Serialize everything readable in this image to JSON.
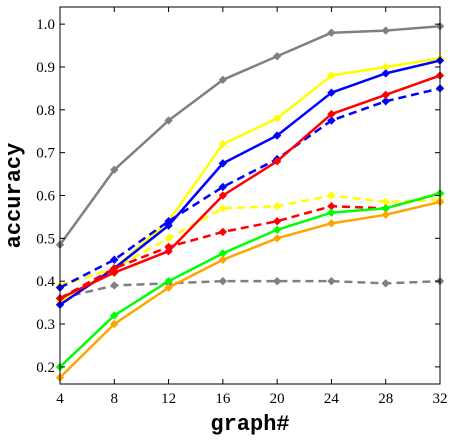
{
  "chart_data": {
    "type": "line",
    "title": "",
    "xlabel": "graph#",
    "ylabel": "accuracy",
    "x": [
      4,
      8,
      12,
      16,
      20,
      24,
      28,
      32
    ],
    "x_tick_labels": [
      "4",
      "8",
      "12",
      "16",
      "20",
      "24",
      "28",
      "32"
    ],
    "y_tick_labels": [
      "0.2",
      "0.3",
      "0.4",
      "0.5",
      "0.6",
      "0.7",
      "0.8",
      "0.9",
      "1.0"
    ],
    "xlim": [
      4,
      32
    ],
    "ylim": [
      0.16,
      1.04
    ],
    "grid": false,
    "legend": "none",
    "series": [
      {
        "color": "#808080",
        "style": "solid",
        "values": [
          0.485,
          0.66,
          0.775,
          0.87,
          0.925,
          0.98,
          0.985,
          0.995
        ]
      },
      {
        "color": "#808080",
        "style": "dashed",
        "values": [
          0.36,
          0.39,
          0.395,
          0.4,
          0.4,
          0.4,
          0.395,
          0.4
        ]
      },
      {
        "color": "#ffff00",
        "style": "solid",
        "values": [
          0.35,
          0.43,
          0.54,
          0.72,
          0.78,
          0.88,
          0.9,
          0.92
        ]
      },
      {
        "color": "#ffff00",
        "style": "dashed",
        "values": [
          0.39,
          0.43,
          0.5,
          0.57,
          0.575,
          0.6,
          0.585,
          0.59
        ]
      },
      {
        "color": "#0000ff",
        "style": "solid",
        "values": [
          0.345,
          0.43,
          0.53,
          0.675,
          0.74,
          0.84,
          0.885,
          0.915
        ]
      },
      {
        "color": "#0000ff",
        "style": "dashed",
        "values": [
          0.385,
          0.45,
          0.54,
          0.62,
          0.685,
          0.775,
          0.82,
          0.85
        ]
      },
      {
        "color": "#ff0000",
        "style": "solid",
        "values": [
          0.36,
          0.42,
          0.47,
          0.6,
          0.68,
          0.79,
          0.835,
          0.88
        ]
      },
      {
        "color": "#ff0000",
        "style": "dashed",
        "values": [
          0.36,
          0.43,
          0.48,
          0.515,
          0.54,
          0.575,
          0.57,
          0.605
        ]
      },
      {
        "color": "#00ff00",
        "style": "solid",
        "values": [
          0.2,
          0.32,
          0.4,
          0.465,
          0.52,
          0.56,
          0.57,
          0.605
        ]
      },
      {
        "color": "#ffa500",
        "style": "solid",
        "values": [
          0.175,
          0.3,
          0.385,
          0.45,
          0.5,
          0.535,
          0.555,
          0.585
        ]
      }
    ]
  }
}
